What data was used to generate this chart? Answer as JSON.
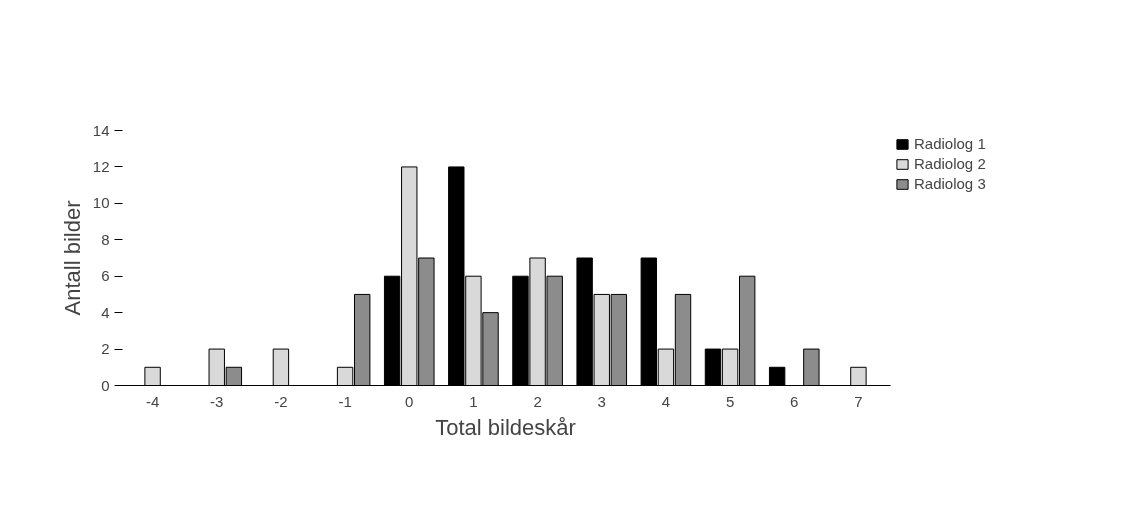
{
  "chart_data": {
    "type": "bar",
    "xlabel": "Total bildeskår",
    "ylabel": "Antall bilder",
    "categories": [
      "-4",
      "-3",
      "-2",
      "-1",
      "0",
      "1",
      "2",
      "3",
      "4",
      "5",
      "6",
      "7"
    ],
    "series": [
      {
        "name": "Radiolog 1",
        "color": "#000000",
        "values": [
          0,
          0,
          0,
          0,
          6,
          12,
          6,
          7,
          7,
          2,
          1,
          0
        ]
      },
      {
        "name": "Radiolog 2",
        "color": "#d9d9d9",
        "values": [
          1,
          2,
          2,
          1,
          12,
          6,
          7,
          5,
          2,
          2,
          0,
          1
        ]
      },
      {
        "name": "Radiolog 3",
        "color": "#8c8c8c",
        "values": [
          0,
          1,
          0,
          5,
          7,
          4,
          6,
          5,
          5,
          6,
          2,
          0
        ]
      }
    ],
    "ylim": [
      0,
      14
    ],
    "yticks": [
      0,
      2,
      4,
      6,
      8,
      10,
      12,
      14
    ],
    "grid": false,
    "legend": "top right"
  }
}
